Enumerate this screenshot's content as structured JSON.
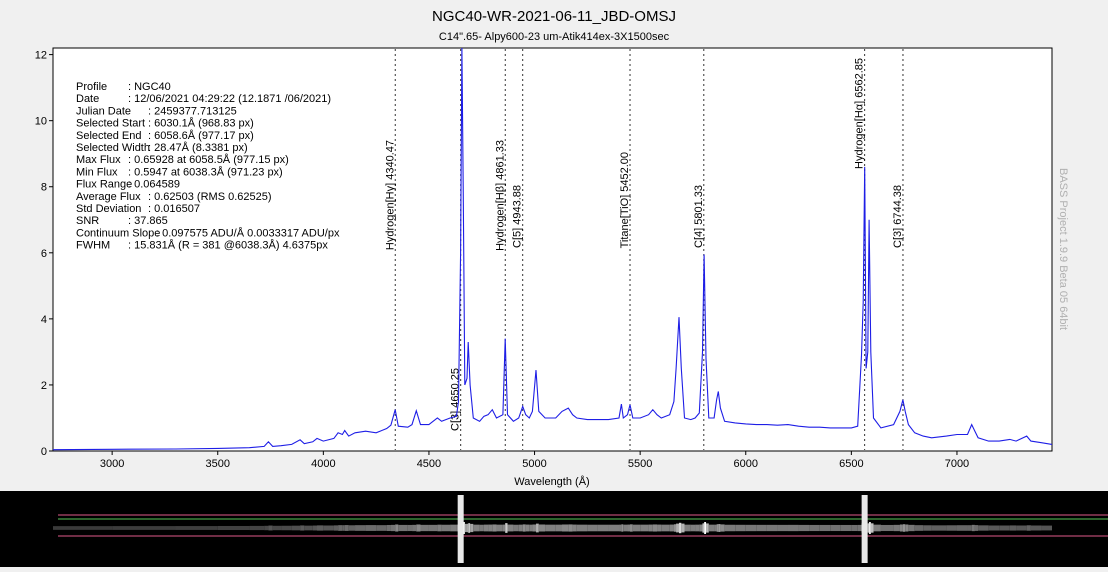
{
  "chart_data": {
    "type": "line",
    "title": "NGC40-WR-2021-06-11_JBD-OMSJ",
    "subtitle": "C14\".65- Alpy600-23 um-Atik414ex-3X1500sec",
    "xlabel": "Wavelength (Å)",
    "ylabel": "",
    "xlim": [
      2720,
      7450
    ],
    "ylim": [
      0,
      12.2
    ],
    "x_ticks": [
      3000,
      3500,
      4000,
      4500,
      5000,
      5500,
      6000,
      6500,
      7000
    ],
    "y_ticks": [
      0,
      2,
      4,
      6,
      8,
      10,
      12
    ],
    "grid": false,
    "line_color": "#1e1ee6",
    "series": [
      {
        "points": [
          [
            2720,
            0.04
          ],
          [
            3000,
            0.05
          ],
          [
            3300,
            0.06
          ],
          [
            3500,
            0.08
          ],
          [
            3650,
            0.1
          ],
          [
            3720,
            0.14
          ],
          [
            3740,
            0.28
          ],
          [
            3760,
            0.14
          ],
          [
            3800,
            0.16
          ],
          [
            3850,
            0.2
          ],
          [
            3890,
            0.34
          ],
          [
            3910,
            0.22
          ],
          [
            3950,
            0.28
          ],
          [
            3970,
            0.38
          ],
          [
            4000,
            0.3
          ],
          [
            4050,
            0.38
          ],
          [
            4070,
            0.55
          ],
          [
            4090,
            0.5
          ],
          [
            4101,
            0.62
          ],
          [
            4120,
            0.45
          ],
          [
            4150,
            0.55
          ],
          [
            4200,
            0.6
          ],
          [
            4250,
            0.55
          ],
          [
            4300,
            0.68
          ],
          [
            4320,
            0.78
          ],
          [
            4340,
            1.25
          ],
          [
            4355,
            0.75
          ],
          [
            4400,
            0.72
          ],
          [
            4420,
            0.8
          ],
          [
            4440,
            1.22
          ],
          [
            4460,
            0.8
          ],
          [
            4500,
            0.8
          ],
          [
            4540,
            1.0
          ],
          [
            4560,
            0.9
          ],
          [
            4600,
            1.0
          ],
          [
            4630,
            1.05
          ],
          [
            4640,
            1.5
          ],
          [
            4650,
            6.0
          ],
          [
            4656,
            12.2
          ],
          [
            4662,
            8.0
          ],
          [
            4670,
            2.0
          ],
          [
            4680,
            2.2
          ],
          [
            4686,
            3.3
          ],
          [
            4695,
            2.0
          ],
          [
            4710,
            1.0
          ],
          [
            4740,
            0.9
          ],
          [
            4760,
            1.05
          ],
          [
            4780,
            1.1
          ],
          [
            4800,
            1.25
          ],
          [
            4820,
            1.0
          ],
          [
            4850,
            1.1
          ],
          [
            4861,
            3.4
          ],
          [
            4872,
            1.1
          ],
          [
            4900,
            0.9
          ],
          [
            4925,
            1.0
          ],
          [
            4944,
            1.35
          ],
          [
            4958,
            1.1
          ],
          [
            4975,
            1.0
          ],
          [
            4990,
            1.2
          ],
          [
            5007,
            2.45
          ],
          [
            5020,
            1.2
          ],
          [
            5050,
            1.0
          ],
          [
            5100,
            1.0
          ],
          [
            5130,
            1.2
          ],
          [
            5160,
            1.3
          ],
          [
            5180,
            1.1
          ],
          [
            5200,
            1.0
          ],
          [
            5250,
            0.95
          ],
          [
            5300,
            0.95
          ],
          [
            5350,
            0.95
          ],
          [
            5400,
            1.0
          ],
          [
            5411,
            1.42
          ],
          [
            5420,
            1.0
          ],
          [
            5440,
            1.1
          ],
          [
            5452,
            1.4
          ],
          [
            5465,
            1.0
          ],
          [
            5500,
            1.0
          ],
          [
            5540,
            1.1
          ],
          [
            5560,
            1.25
          ],
          [
            5580,
            1.1
          ],
          [
            5600,
            1.0
          ],
          [
            5640,
            1.1
          ],
          [
            5660,
            1.5
          ],
          [
            5670,
            2.5
          ],
          [
            5684,
            4.05
          ],
          [
            5695,
            2.5
          ],
          [
            5710,
            1.0
          ],
          [
            5740,
            0.95
          ],
          [
            5760,
            1.0
          ],
          [
            5780,
            1.15
          ],
          [
            5795,
            3.0
          ],
          [
            5803,
            5.95
          ],
          [
            5812,
            2.8
          ],
          [
            5825,
            1.0
          ],
          [
            5850,
            1.0
          ],
          [
            5862,
            1.55
          ],
          [
            5870,
            1.8
          ],
          [
            5880,
            1.3
          ],
          [
            5900,
            0.9
          ],
          [
            5950,
            0.85
          ],
          [
            6000,
            0.82
          ],
          [
            6050,
            0.8
          ],
          [
            6100,
            0.8
          ],
          [
            6150,
            0.78
          ],
          [
            6200,
            0.8
          ],
          [
            6250,
            0.75
          ],
          [
            6300,
            0.72
          ],
          [
            6350,
            0.72
          ],
          [
            6400,
            0.7
          ],
          [
            6450,
            0.7
          ],
          [
            6500,
            0.7
          ],
          [
            6530,
            0.75
          ],
          [
            6548,
            2.9
          ],
          [
            6556,
            4.5
          ],
          [
            6563,
            8.6
          ],
          [
            6570,
            2.5
          ],
          [
            6578,
            3.0
          ],
          [
            6584,
            7.0
          ],
          [
            6592,
            3.0
          ],
          [
            6605,
            1.0
          ],
          [
            6640,
            0.7
          ],
          [
            6700,
            0.8
          ],
          [
            6730,
            1.2
          ],
          [
            6744,
            1.55
          ],
          [
            6755,
            1.2
          ],
          [
            6770,
            0.8
          ],
          [
            6800,
            0.55
          ],
          [
            6840,
            0.45
          ],
          [
            6880,
            0.4
          ],
          [
            6950,
            0.45
          ],
          [
            7000,
            0.5
          ],
          [
            7050,
            0.5
          ],
          [
            7070,
            0.8
          ],
          [
            7085,
            0.6
          ],
          [
            7100,
            0.4
          ],
          [
            7150,
            0.3
          ],
          [
            7200,
            0.3
          ],
          [
            7250,
            0.35
          ],
          [
            7280,
            0.3
          ],
          [
            7330,
            0.45
          ],
          [
            7350,
            0.3
          ],
          [
            7400,
            0.25
          ],
          [
            7450,
            0.2
          ]
        ]
      }
    ],
    "line_markers": [
      {
        "x": 4340.47,
        "label": "Hydrogen[Hγ] 4340.47"
      },
      {
        "x": 4650.25,
        "label": "C[3] 4650.25"
      },
      {
        "x": 4861.33,
        "label": "Hydrogen[Hβ] 4861.33"
      },
      {
        "x": 4943.88,
        "label": "C[5] 4943.88"
      },
      {
        "x": 5452.0,
        "label": "Titane[TiO] 5452.00"
      },
      {
        "x": 5801.33,
        "label": "C[4] 5801.33"
      },
      {
        "x": 6562.85,
        "label": "Hydrogen[Hα] 6562.85"
      },
      {
        "x": 6744.38,
        "label": "C[3] 6744.38"
      }
    ],
    "info_box": [
      {
        "key": "Profile",
        "value": ": NGC40"
      },
      {
        "key": "Date",
        "value": ": 12/06/2021 04:29:22 (12.1871 /06/2021)"
      },
      {
        "key": "Julian Date",
        "value": ": 2459377.713125"
      },
      {
        "key": "Selected Start",
        "value": ": 6030.1Å (968.83 px)"
      },
      {
        "key": "Selected End",
        "value": ": 6058.6Å (977.17 px)"
      },
      {
        "key": "Selected Width",
        "value": ": 28.47Å (8.3381 px)"
      },
      {
        "key": "Max Flux",
        "value": ": 0.65928 at 6058.5Å (977.15 px)"
      },
      {
        "key": "Min Flux",
        "value": ": 0.5947 at 6038.3Å (971.23 px)"
      },
      {
        "key": "Flux Range",
        "value": ": 0.064589"
      },
      {
        "key": "Average Flux",
        "value": ": 0.62503 (RMS 0.62525)"
      },
      {
        "key": "Std Deviation",
        "value": ": 0.016507"
      },
      {
        "key": "SNR",
        "value": ": 37.865"
      },
      {
        "key": "Continuum Slope",
        "value": ": 0.097575 ADU/Å  0.0033317 ADU/px"
      },
      {
        "key": "FWHM",
        "value": ": 15.831Å (R = 381 @6038.3Å) 4.6375px"
      }
    ],
    "watermark": "BASS Project 1.9.9 Beta 05 64bit"
  },
  "spectrum_strip": {
    "guide_line_colors": [
      "#e05a8a",
      "#5ac85a",
      "#e05a8a"
    ]
  }
}
